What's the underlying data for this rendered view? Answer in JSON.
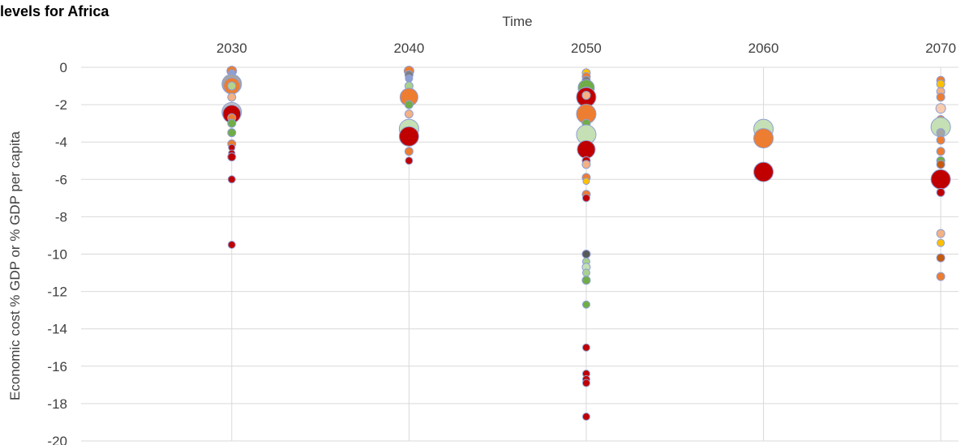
{
  "chart_data": {
    "type": "scatter",
    "title": "levels for Africa",
    "xlabel": "Time",
    "ylabel": "Economic cost % GDP or % GDP per capita",
    "x_position": "top",
    "x_ticks": [
      2030,
      2040,
      2050,
      2060,
      2070
    ],
    "y_ticks": [
      0,
      -2,
      -4,
      -6,
      -8,
      -10,
      -12,
      -14,
      -16,
      -18,
      -20
    ],
    "xlim": [
      2021.5,
      2071
    ],
    "ylim": [
      -20,
      0
    ],
    "grid": "both",
    "points": [
      {
        "x": 2030,
        "y": -0.2,
        "size": 12,
        "color": "#ED7D31"
      },
      {
        "x": 2030,
        "y": -0.3,
        "size": 8,
        "color": "#8E9FD3"
      },
      {
        "x": 2030,
        "y": -0.9,
        "size": 24,
        "color": "#A5A5A5"
      },
      {
        "x": 2030,
        "y": -1.0,
        "size": 20,
        "color": "#ED7D31"
      },
      {
        "x": 2030,
        "y": -1.0,
        "size": 10,
        "color": "#B4D48B"
      },
      {
        "x": 2030,
        "y": -1.6,
        "size": 10,
        "color": "#F4B183"
      },
      {
        "x": 2030,
        "y": -2.4,
        "size": 24,
        "color": "#C0C0C0"
      },
      {
        "x": 2030,
        "y": -2.5,
        "size": 22,
        "color": "#C00000"
      },
      {
        "x": 2030,
        "y": -2.7,
        "size": 10,
        "color": "#ED7D31"
      },
      {
        "x": 2030,
        "y": -3.0,
        "size": 10,
        "color": "#70AD47"
      },
      {
        "x": 2030,
        "y": -3.5,
        "size": 10,
        "color": "#70AD47"
      },
      {
        "x": 2030,
        "y": -4.1,
        "size": 10,
        "color": "#ED7D31"
      },
      {
        "x": 2030,
        "y": -4.3,
        "size": 8,
        "color": "#C00000"
      },
      {
        "x": 2030,
        "y": -4.6,
        "size": 8,
        "color": "#C00000"
      },
      {
        "x": 2030,
        "y": -4.8,
        "size": 10,
        "color": "#C00000"
      },
      {
        "x": 2030,
        "y": -6.0,
        "size": 9,
        "color": "#C00000"
      },
      {
        "x": 2030,
        "y": -9.5,
        "size": 9,
        "color": "#C00000"
      },
      {
        "x": 2040,
        "y": -0.2,
        "size": 12,
        "color": "#ED7D31"
      },
      {
        "x": 2040,
        "y": -0.4,
        "size": 10,
        "color": "#7F7F7F"
      },
      {
        "x": 2040,
        "y": -0.6,
        "size": 9,
        "color": "#8E9FD3"
      },
      {
        "x": 2040,
        "y": -1.0,
        "size": 10,
        "color": "#A9D18E"
      },
      {
        "x": 2040,
        "y": -1.6,
        "size": 22,
        "color": "#ED7D31"
      },
      {
        "x": 2040,
        "y": -2.0,
        "size": 10,
        "color": "#70AD47"
      },
      {
        "x": 2040,
        "y": -2.5,
        "size": 10,
        "color": "#F4B183"
      },
      {
        "x": 2040,
        "y": -3.3,
        "size": 24,
        "color": "#C5E0B4"
      },
      {
        "x": 2040,
        "y": -3.7,
        "size": 24,
        "color": "#C00000"
      },
      {
        "x": 2040,
        "y": -4.5,
        "size": 10,
        "color": "#ED7D31"
      },
      {
        "x": 2040,
        "y": -5.0,
        "size": 9,
        "color": "#C00000"
      },
      {
        "x": 2050,
        "y": -0.3,
        "size": 10,
        "color": "#FFC000"
      },
      {
        "x": 2050,
        "y": -0.5,
        "size": 10,
        "color": "#ED7D31"
      },
      {
        "x": 2050,
        "y": -0.7,
        "size": 10,
        "color": "#7F7F7F"
      },
      {
        "x": 2050,
        "y": -1.1,
        "size": 20,
        "color": "#70AD47"
      },
      {
        "x": 2050,
        "y": -1.4,
        "size": 16,
        "color": "#ED7D31"
      },
      {
        "x": 2050,
        "y": -1.6,
        "size": 24,
        "color": "#C00000"
      },
      {
        "x": 2050,
        "y": -1.5,
        "size": 10,
        "color": "#F4B183"
      },
      {
        "x": 2050,
        "y": -2.3,
        "size": 10,
        "color": "#A9D18E"
      },
      {
        "x": 2050,
        "y": -2.5,
        "size": 24,
        "color": "#ED7D31"
      },
      {
        "x": 2050,
        "y": -3.0,
        "size": 10,
        "color": "#70AD47"
      },
      {
        "x": 2050,
        "y": -3.6,
        "size": 24,
        "color": "#C5E0B4"
      },
      {
        "x": 2050,
        "y": -4.4,
        "size": 22,
        "color": "#C00000"
      },
      {
        "x": 2050,
        "y": -5.0,
        "size": 10,
        "color": "#C00000"
      },
      {
        "x": 2050,
        "y": -5.2,
        "size": 10,
        "color": "#F4B183"
      },
      {
        "x": 2050,
        "y": -5.9,
        "size": 10,
        "color": "#ED7D31"
      },
      {
        "x": 2050,
        "y": -6.1,
        "size": 8,
        "color": "#FFC000"
      },
      {
        "x": 2050,
        "y": -6.8,
        "size": 10,
        "color": "#ED7D31"
      },
      {
        "x": 2050,
        "y": -7.0,
        "size": 9,
        "color": "#C00000"
      },
      {
        "x": 2050,
        "y": -10.0,
        "size": 10,
        "color": "#595959"
      },
      {
        "x": 2050,
        "y": -10.4,
        "size": 9,
        "color": "#A9D18E"
      },
      {
        "x": 2050,
        "y": -10.7,
        "size": 10,
        "color": "#C5E0B4"
      },
      {
        "x": 2050,
        "y": -11.0,
        "size": 9,
        "color": "#A9D18E"
      },
      {
        "x": 2050,
        "y": -11.4,
        "size": 10,
        "color": "#70AD47"
      },
      {
        "x": 2050,
        "y": -12.7,
        "size": 9,
        "color": "#70AD47"
      },
      {
        "x": 2050,
        "y": -15.0,
        "size": 9,
        "color": "#C00000"
      },
      {
        "x": 2050,
        "y": -16.4,
        "size": 9,
        "color": "#C00000"
      },
      {
        "x": 2050,
        "y": -16.7,
        "size": 9,
        "color": "#C00000"
      },
      {
        "x": 2050,
        "y": -16.9,
        "size": 9,
        "color": "#C00000"
      },
      {
        "x": 2050,
        "y": -18.7,
        "size": 9,
        "color": "#C00000"
      },
      {
        "x": 2060,
        "y": -3.3,
        "size": 24,
        "color": "#C5E0B4"
      },
      {
        "x": 2060,
        "y": -3.8,
        "size": 24,
        "color": "#ED7D31"
      },
      {
        "x": 2060,
        "y": -5.6,
        "size": 24,
        "color": "#C00000"
      },
      {
        "x": 2070,
        "y": -0.7,
        "size": 10,
        "color": "#ED7D31"
      },
      {
        "x": 2070,
        "y": -0.9,
        "size": 10,
        "color": "#FFC000"
      },
      {
        "x": 2070,
        "y": -1.3,
        "size": 10,
        "color": "#F4B183"
      },
      {
        "x": 2070,
        "y": -1.6,
        "size": 10,
        "color": "#ED7D31"
      },
      {
        "x": 2070,
        "y": -2.2,
        "size": 12,
        "color": "#F8CBAD"
      },
      {
        "x": 2070,
        "y": -2.8,
        "size": 10,
        "color": "#ED7D31"
      },
      {
        "x": 2070,
        "y": -3.2,
        "size": 24,
        "color": "#C5E0B4"
      },
      {
        "x": 2070,
        "y": -3.5,
        "size": 10,
        "color": "#A5A5A5"
      },
      {
        "x": 2070,
        "y": -3.9,
        "size": 10,
        "color": "#ED7D31"
      },
      {
        "x": 2070,
        "y": -4.5,
        "size": 10,
        "color": "#ED7D31"
      },
      {
        "x": 2070,
        "y": -5.0,
        "size": 10,
        "color": "#70AD47"
      },
      {
        "x": 2070,
        "y": -5.2,
        "size": 10,
        "color": "#C55A11"
      },
      {
        "x": 2070,
        "y": -6.0,
        "size": 24,
        "color": "#C00000"
      },
      {
        "x": 2070,
        "y": -6.7,
        "size": 10,
        "color": "#C00000"
      },
      {
        "x": 2070,
        "y": -8.9,
        "size": 10,
        "color": "#F4B183"
      },
      {
        "x": 2070,
        "y": -9.4,
        "size": 9,
        "color": "#FFC000"
      },
      {
        "x": 2070,
        "y": -10.2,
        "size": 10,
        "color": "#C55A11"
      },
      {
        "x": 2070,
        "y": -11.2,
        "size": 10,
        "color": "#ED7D31"
      }
    ]
  }
}
